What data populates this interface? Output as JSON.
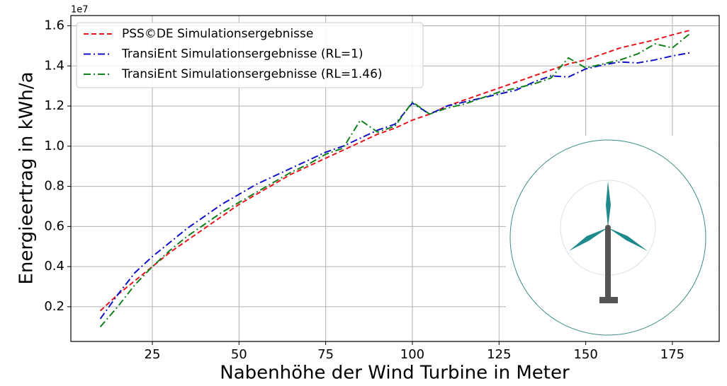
{
  "chart_data": {
    "type": "line",
    "xlabel": "Nabenhöhe der Wind Turbine in Meter",
    "ylabel": "Energieertrag in kWh/a",
    "y_offset_label": "1e7",
    "x": [
      10,
      15,
      20,
      25,
      30,
      35,
      40,
      45,
      50,
      55,
      60,
      65,
      70,
      75,
      80,
      85,
      90,
      95,
      100,
      105,
      110,
      115,
      120,
      125,
      130,
      135,
      140,
      145,
      150,
      155,
      160,
      165,
      170,
      175,
      180
    ],
    "series": [
      {
        "name": "PSS©DE Simulationsergebnisse",
        "color": "#e8141c",
        "dash": "7,4",
        "values": [
          0.18,
          0.26,
          0.33,
          0.4,
          0.47,
          0.53,
          0.59,
          0.65,
          0.71,
          0.76,
          0.81,
          0.86,
          0.9,
          0.94,
          0.98,
          1.02,
          1.06,
          1.09,
          1.13,
          1.16,
          1.2,
          1.23,
          1.26,
          1.29,
          1.32,
          1.35,
          1.38,
          1.41,
          1.43,
          1.46,
          1.49,
          1.51,
          1.53,
          1.555,
          1.577
        ]
      },
      {
        "name": "TransiEnt Simulationsergebnisse (RL=1)",
        "color": "#1010c8",
        "dash": "10,4,2,4",
        "values": [
          0.14,
          0.26,
          0.37,
          0.45,
          0.52,
          0.59,
          0.65,
          0.71,
          0.76,
          0.81,
          0.85,
          0.89,
          0.93,
          0.97,
          1.0,
          1.04,
          1.08,
          1.11,
          1.215,
          1.16,
          1.2,
          1.22,
          1.24,
          1.26,
          1.28,
          1.32,
          1.35,
          1.345,
          1.385,
          1.405,
          1.42,
          1.415,
          1.43,
          1.45,
          1.465
        ]
      },
      {
        "name": "TransiEnt Simulationsergebnisse (RL=1.46)",
        "color": "#10801a",
        "dash": "10,4,2,4",
        "values": [
          0.1,
          0.2,
          0.31,
          0.4,
          0.48,
          0.55,
          0.61,
          0.67,
          0.72,
          0.77,
          0.82,
          0.87,
          0.91,
          0.96,
          0.99,
          1.13,
          1.07,
          1.1,
          1.22,
          1.16,
          1.19,
          1.21,
          1.24,
          1.27,
          1.29,
          1.31,
          1.34,
          1.44,
          1.39,
          1.41,
          1.43,
          1.46,
          1.51,
          1.49,
          1.56
        ]
      }
    ],
    "xlim": [
      1.5,
      188.5
    ],
    "xticks": [
      25,
      50,
      75,
      100,
      125,
      150,
      175
    ],
    "ylim": [
      0.027,
      1.651
    ],
    "yticks": [
      0.2,
      0.4,
      0.6,
      0.8,
      {
        "value": 1,
        "label": "1.0"
      },
      1.2,
      1.4,
      1.6
    ],
    "grid": true,
    "legend": "upper left"
  }
}
